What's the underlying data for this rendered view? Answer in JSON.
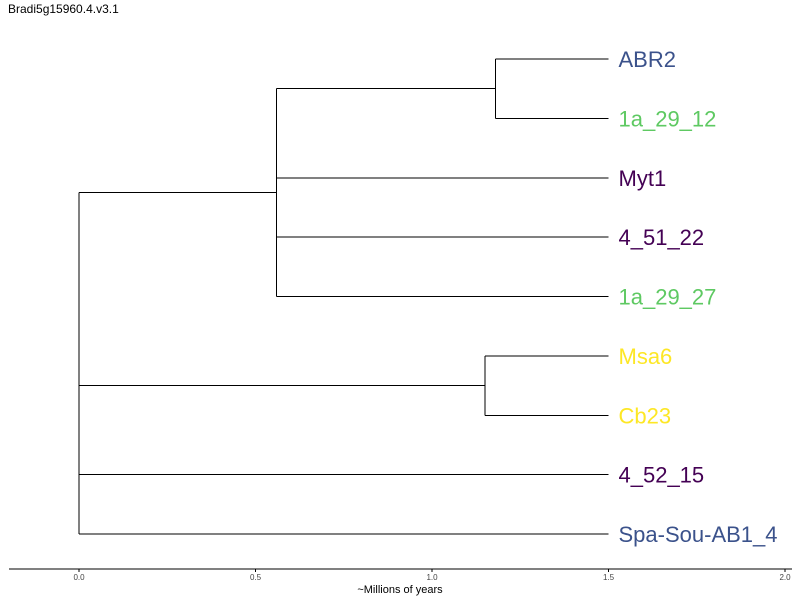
{
  "title": "Bradi5g15960.4.v3.1",
  "axis": {
    "label": "~Millions of years",
    "range": [
      0.0,
      2.0
    ],
    "ticks": [
      "0.0",
      "0.5",
      "1.0",
      "1.5",
      "2.0"
    ]
  },
  "tree": {
    "leaves": [
      {
        "name": "ABR2",
        "color": "#3b528b"
      },
      {
        "name": "1a_29_12",
        "color": "#5ec962"
      },
      {
        "name": "Myt1",
        "color": "#440154"
      },
      {
        "name": "4_51_22",
        "color": "#440154"
      },
      {
        "name": "1a_29_27",
        "color": "#5ec962"
      },
      {
        "name": "Msa6",
        "color": "#fde725"
      },
      {
        "name": "Cb23",
        "color": "#fde725"
      },
      {
        "name": "4_52_15",
        "color": "#440154"
      },
      {
        "name": "Spa-Sou-AB1_4",
        "color": "#3b528b"
      }
    ],
    "root": {
      "x": 0.0,
      "children": [
        {
          "x": 0.56,
          "children": [
            {
              "x": 1.18,
              "children": [
                {
                  "leaf": 0
                },
                {
                  "leaf": 1
                }
              ]
            },
            {
              "leaf": 2
            },
            {
              "leaf": 3
            },
            {
              "leaf": 4
            }
          ]
        },
        {
          "x": 0.0,
          "children": [
            {
              "x": 1.15,
              "children": [
                {
                  "leaf": 5
                },
                {
                  "leaf": 6
                }
              ]
            },
            {
              "leaf": 7
            },
            {
              "leaf": 8
            }
          ]
        }
      ]
    }
  }
}
